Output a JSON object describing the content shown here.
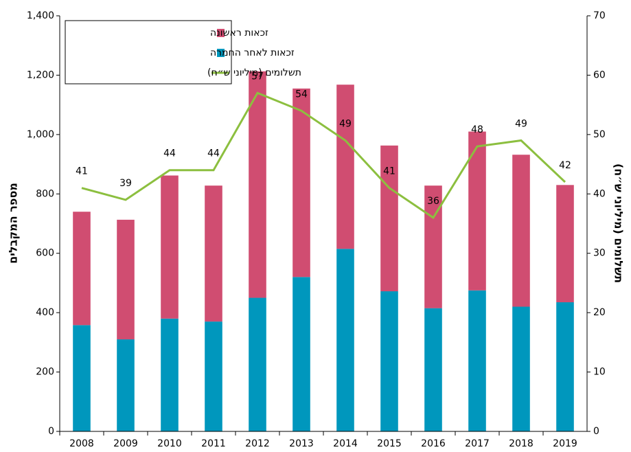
{
  "chart_data": {
    "type": "bar",
    "stacked": true,
    "categories": [
      "2008",
      "2009",
      "2010",
      "2011",
      "2012",
      "2013",
      "2014",
      "2015",
      "2016",
      "2017",
      "2018",
      "2019"
    ],
    "series": [
      {
        "name": "זכאות לאחר החמרה",
        "color": "#0097bd",
        "values": [
          358,
          310,
          380,
          370,
          450,
          520,
          615,
          472,
          415,
          475,
          420,
          435
        ]
      },
      {
        "name": "זכאות ראשונה",
        "color": "#d04d71",
        "values": [
          382,
          403,
          482,
          458,
          763,
          635,
          553,
          491,
          413,
          535,
          512,
          395
        ]
      },
      {
        "name": "תשלומים (מיליוני ש״ח)",
        "color": "#8cbf3f",
        "type": "line",
        "axis": "y2",
        "values": [
          41,
          39,
          44,
          44,
          57,
          54,
          49,
          41,
          36,
          48,
          49,
          42
        ]
      }
    ],
    "ylabel": "מספר המקבלים",
    "y2label": "תשלומים (מיליוני ש״ח)",
    "ylim": [
      0,
      1400
    ],
    "yticks": [
      0,
      {
        "value": 200,
        "label": "200"
      },
      {
        "value": 400,
        "label": "400"
      },
      {
        "value": 600,
        "label": "600"
      },
      {
        "value": 800,
        "label": "800"
      },
      {
        "value": 1000,
        "label": "1,000"
      },
      {
        "value": 1200,
        "label": "1,200"
      },
      {
        "value": 1400,
        "label": "1,400"
      }
    ],
    "y2lim": [
      0,
      70
    ],
    "y2ticks": [
      0,
      10,
      20,
      30,
      40,
      50,
      60,
      70
    ],
    "legend": "top-left",
    "grid": false
  }
}
